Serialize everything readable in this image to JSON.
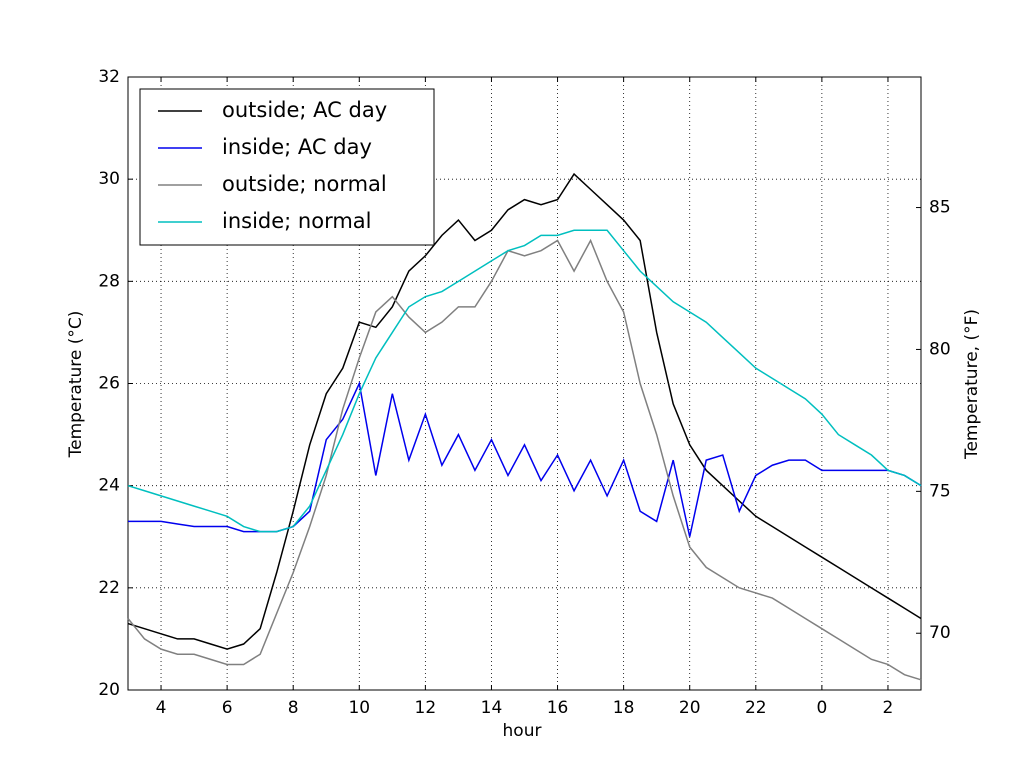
{
  "chart_data": {
    "type": "line",
    "xlabel": "hour",
    "ylabel": "Temperature (°C)",
    "y2label": "Temperature, (°F)",
    "x": [
      3,
      3.5,
      4,
      4.5,
      5,
      5.5,
      6,
      6.5,
      7,
      7.5,
      8,
      8.5,
      9,
      9.5,
      10,
      10.5,
      11,
      11.5,
      12,
      12.5,
      13,
      13.5,
      14,
      14.5,
      15,
      15.5,
      16,
      16.5,
      17,
      17.5,
      18,
      18.5,
      19,
      19.5,
      20,
      20.5,
      21,
      21.5,
      22,
      22.5,
      23,
      23.5,
      24,
      24.5,
      25,
      25.5,
      26,
      26.5,
      27
    ],
    "series": [
      {
        "name": "outside; AC day",
        "color": "#000000",
        "values": [
          21.3,
          21.2,
          21.1,
          21.0,
          21.0,
          20.9,
          20.8,
          20.9,
          21.2,
          22.3,
          23.5,
          24.8,
          25.8,
          26.3,
          27.2,
          27.1,
          27.5,
          28.2,
          28.5,
          28.9,
          29.2,
          28.8,
          29.0,
          29.4,
          29.6,
          29.5,
          29.6,
          30.1,
          29.8,
          29.5,
          29.2,
          28.8,
          27.0,
          25.6,
          24.8,
          24.3,
          24.0,
          23.7,
          23.4,
          23.2,
          23.0,
          22.8,
          22.6,
          22.4,
          22.2,
          22.0,
          21.8,
          21.6,
          21.4
        ]
      },
      {
        "name": "inside; AC day",
        "color": "#0000ee",
        "values": [
          23.3,
          23.3,
          23.3,
          23.25,
          23.2,
          23.2,
          23.2,
          23.1,
          23.1,
          23.1,
          23.2,
          23.5,
          24.9,
          25.3,
          26.0,
          24.2,
          25.8,
          24.5,
          25.4,
          24.4,
          25.0,
          24.3,
          24.9,
          24.2,
          24.8,
          24.1,
          24.6,
          23.9,
          24.5,
          23.8,
          24.5,
          23.5,
          23.3,
          24.5,
          23.0,
          24.5,
          24.6,
          23.5,
          24.2,
          24.4,
          24.5,
          24.5,
          24.3,
          24.3,
          24.3,
          24.3,
          24.3,
          24.2,
          24.0
        ]
      },
      {
        "name": "outside; normal",
        "color": "#808080",
        "values": [
          21.4,
          21.0,
          20.8,
          20.7,
          20.7,
          20.6,
          20.5,
          20.5,
          20.7,
          21.5,
          22.3,
          23.2,
          24.2,
          25.5,
          26.5,
          27.4,
          27.7,
          27.3,
          27.0,
          27.2,
          27.5,
          27.5,
          28.0,
          28.6,
          28.5,
          28.6,
          28.8,
          28.2,
          28.8,
          28.0,
          27.4,
          26.0,
          25.0,
          23.8,
          22.8,
          22.4,
          22.2,
          22.0,
          21.9,
          21.8,
          21.6,
          21.4,
          21.2,
          21.0,
          20.8,
          20.6,
          20.5,
          20.3,
          20.2
        ]
      },
      {
        "name": "inside; normal",
        "color": "#00bfbf",
        "values": [
          24.0,
          23.9,
          23.8,
          23.7,
          23.6,
          23.5,
          23.4,
          23.2,
          23.1,
          23.1,
          23.2,
          23.6,
          24.3,
          25.0,
          25.8,
          26.5,
          27.0,
          27.5,
          27.7,
          27.8,
          28.0,
          28.2,
          28.4,
          28.6,
          28.7,
          28.9,
          28.9,
          29.0,
          29.0,
          29.0,
          28.6,
          28.2,
          27.9,
          27.6,
          27.4,
          27.2,
          26.9,
          26.6,
          26.3,
          26.1,
          25.9,
          25.7,
          25.4,
          25.0,
          24.8,
          24.6,
          24.3,
          24.2,
          24.0
        ]
      }
    ],
    "xlim": [
      3,
      27
    ],
    "xticks": [
      4,
      6,
      8,
      10,
      12,
      14,
      16,
      18,
      20,
      22,
      {
        "value": 24,
        "label": "0"
      },
      {
        "value": 26,
        "label": "2"
      }
    ],
    "ylim": [
      20,
      32
    ],
    "yticks": [
      20,
      22,
      24,
      26,
      28,
      30,
      32
    ],
    "y2lim": [
      68,
      89.6
    ],
    "y2ticks": [
      70,
      75,
      80,
      85
    ],
    "grid": true,
    "legend": "upper left"
  }
}
